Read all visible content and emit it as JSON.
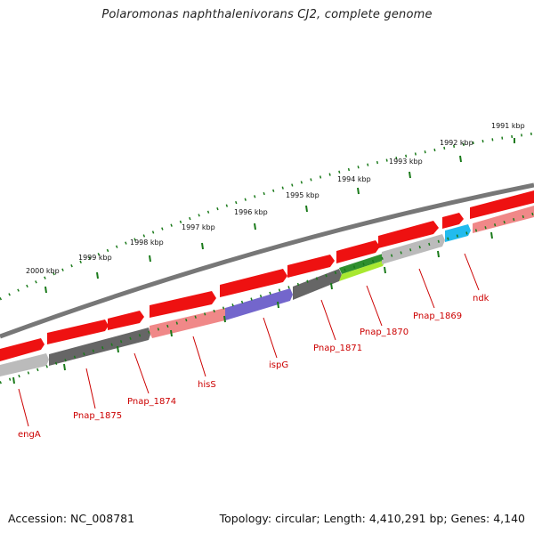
{
  "title": "Polaromonas naphthalenivorans CJ2, complete genome",
  "footer": {
    "accession": "Accession: NC_008781",
    "summary": "Topology: circular; Length: 4,410,291 bp; Genes: 4,140"
  },
  "ruler": {
    "outer_tick_labels": [
      "1991 kbp",
      "1992 kbp",
      "1993 kbp",
      "1994 kbp",
      "1995 kbp",
      "1996 kbp",
      "1997 kbp",
      "1998 kbp",
      "1999 kbp",
      "2000 kbp"
    ]
  },
  "gene_labels": [
    "engA",
    "Pnap_1875",
    "Pnap_1874",
    "hisS",
    "ispG",
    "Pnap_1871",
    "Pnap_1870",
    "Pnap_1869",
    "ndk"
  ],
  "colors": {
    "backbone": "#777777",
    "tick": "#1a7a1a",
    "gene_fwd": "#ee1111",
    "gene_pink": "#f08888",
    "gene_dark": "#666666",
    "gene_light": "#bbbbbb",
    "gene_purple": "#7366cc",
    "gene_green": "#2f8f2f",
    "gene_lime": "#a8e830",
    "gene_cyan": "#22bbee",
    "label": "#cc0000"
  }
}
